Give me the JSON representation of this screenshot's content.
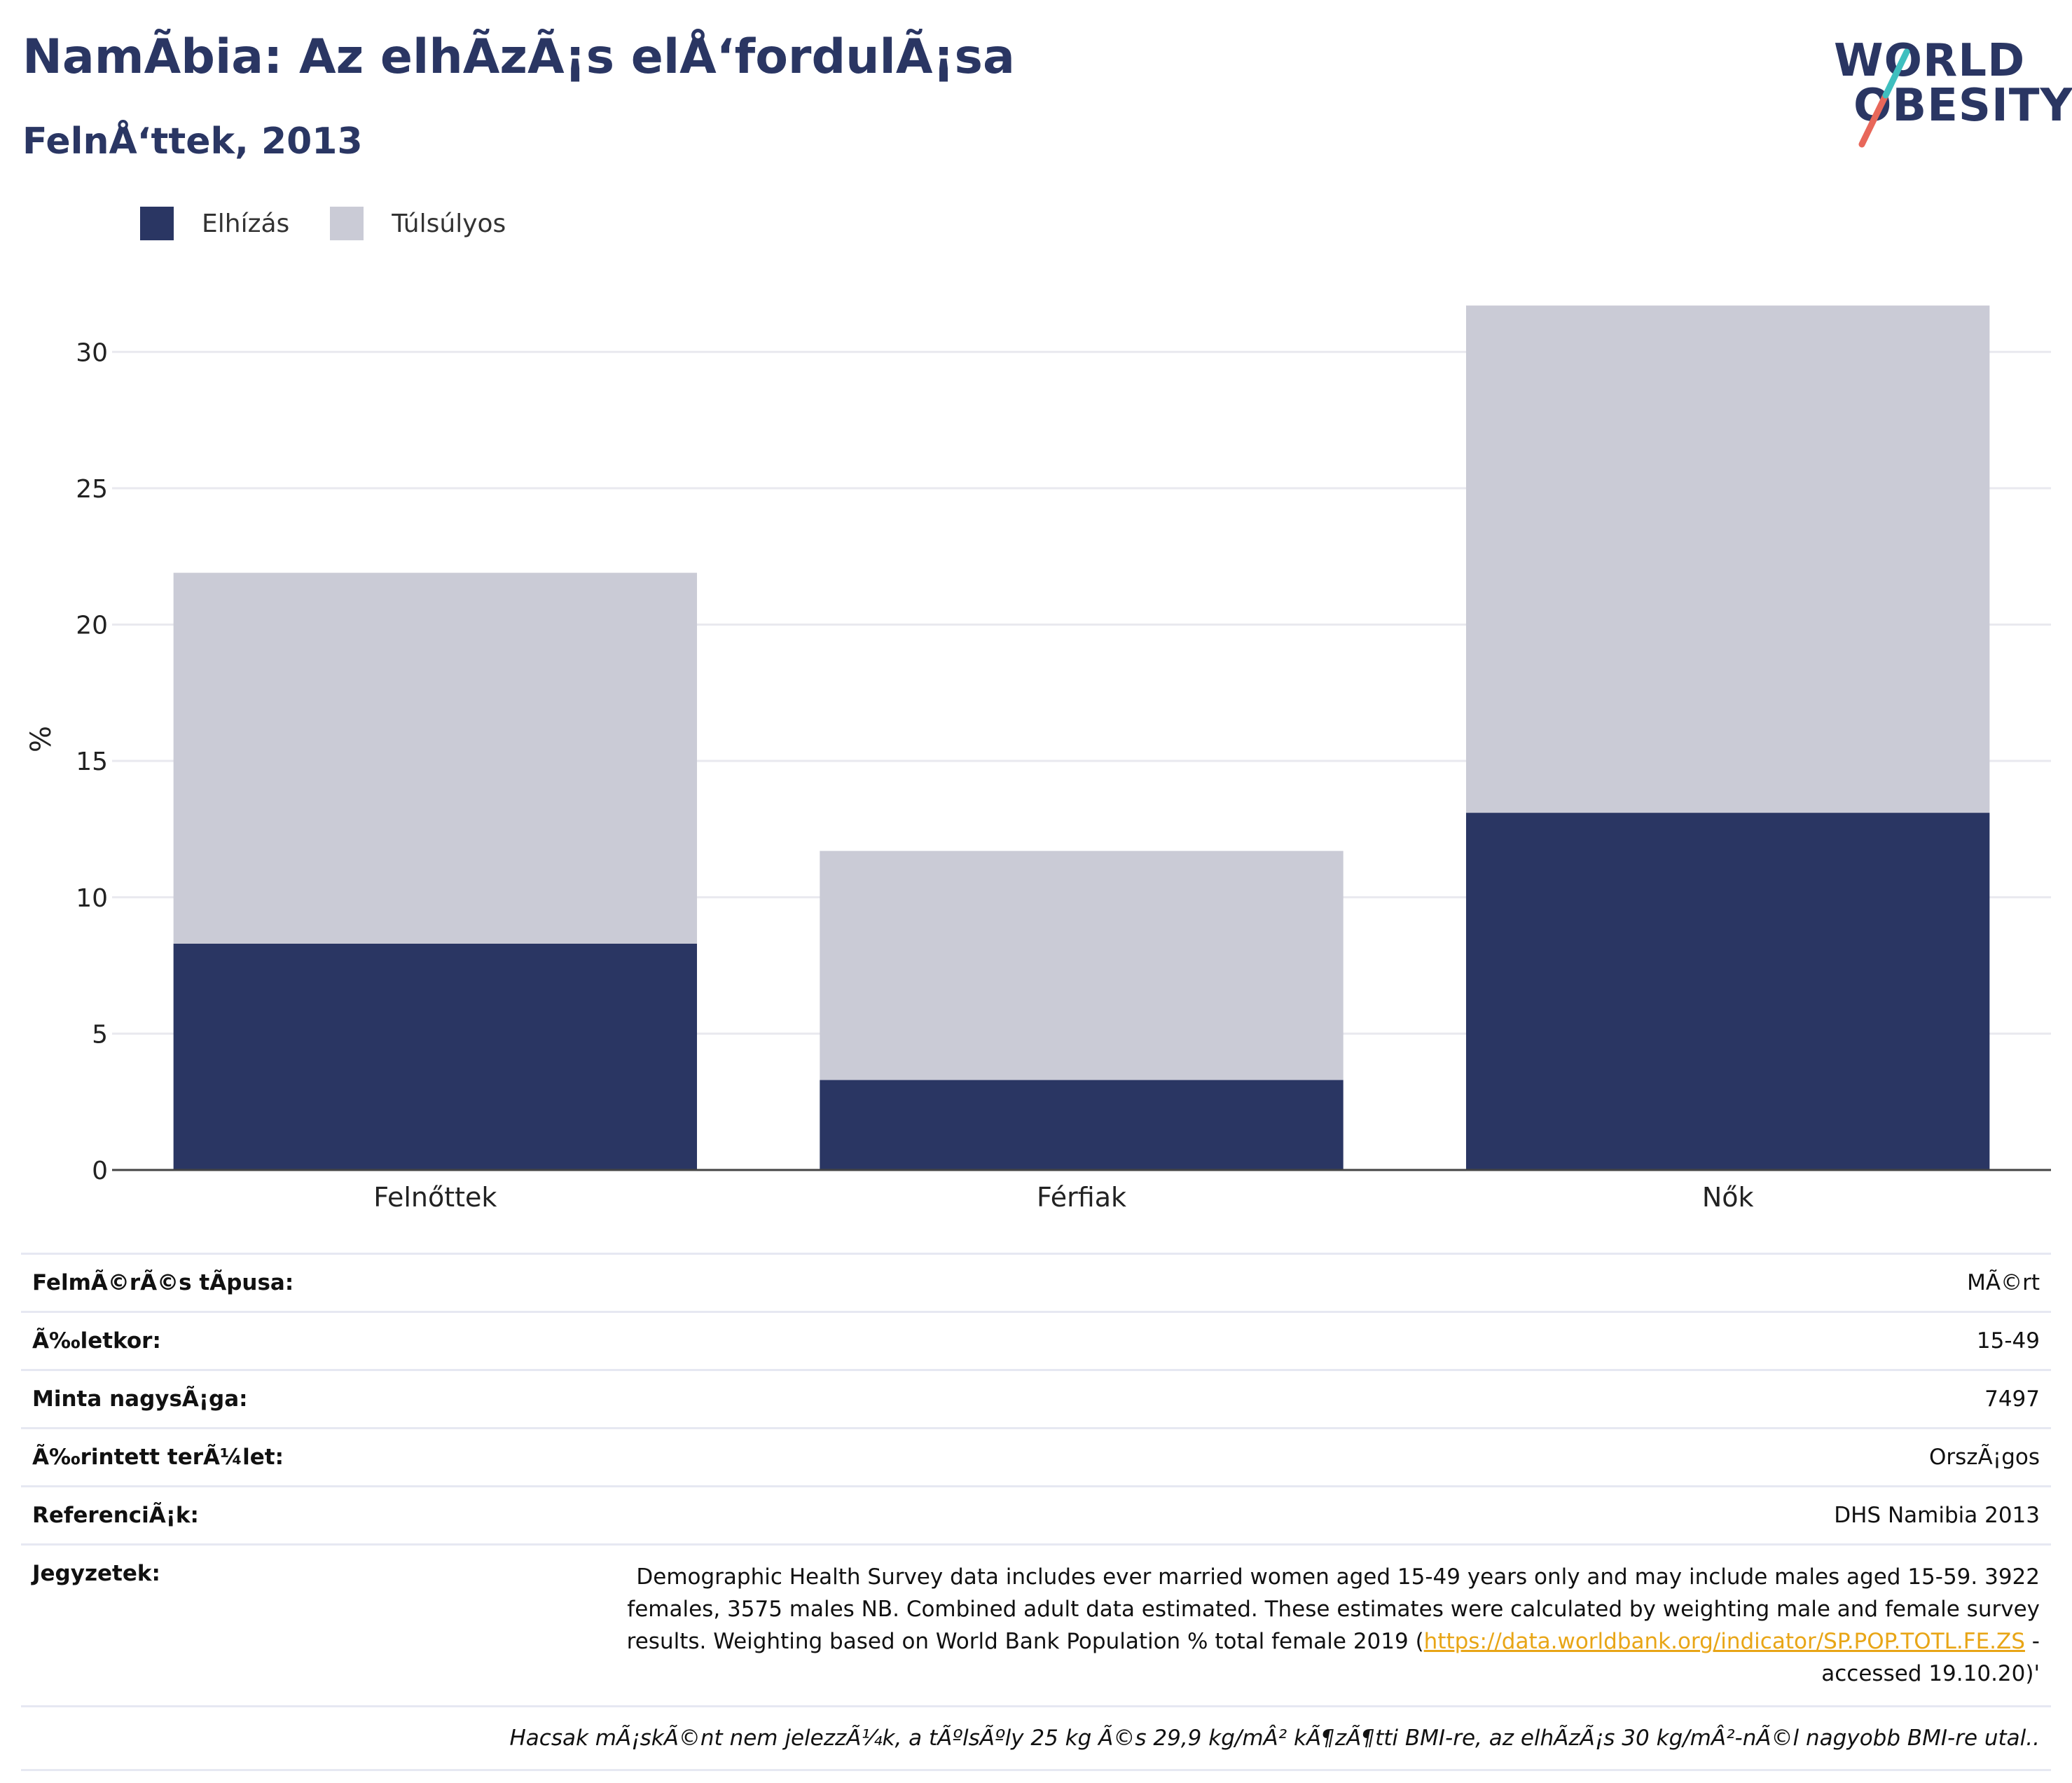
{
  "header": {
    "title": "NamÃbia: Az elhÃzÃ¡s elÅ‘fordulÃ¡sa",
    "subtitle": "FelnÅ‘ttek, 2013"
  },
  "logo": {
    "line1": "WORLD",
    "line2": "OBESITY",
    "colors": [
      "#2a3663",
      "#e8675a",
      "#3fbfbf"
    ]
  },
  "legend": [
    {
      "label": "Elhízás",
      "color": "#2a3663"
    },
    {
      "label": "Túlsúlyos",
      "color": "#cacbd6"
    }
  ],
  "chart_data": {
    "type": "bar",
    "stacked": true,
    "categories": [
      "Felnőttek",
      "Férfiak",
      "Nők"
    ],
    "series": [
      {
        "name": "Elhízás",
        "values": [
          8.3,
          3.3,
          13.1
        ],
        "color": "#2a3663"
      },
      {
        "name": "Túlsúlyos",
        "values": [
          13.6,
          8.4,
          18.6
        ],
        "color": "#cacbd6"
      }
    ],
    "ylabel": "%",
    "ylim": [
      0,
      31.6
    ],
    "yticks": [
      0,
      5,
      10,
      15,
      20,
      25,
      30
    ],
    "grid": true,
    "legend_position": "top-left"
  },
  "info": {
    "survey_type": {
      "label": "FelmÃ©rÃ©s tÃpusa:",
      "value": "MÃ©rt"
    },
    "age": {
      "label": "Ã‰letkor:",
      "value": "15-49"
    },
    "sample": {
      "label": "Minta nagysÃ¡ga:",
      "value": "7497"
    },
    "area": {
      "label": "Ã‰rintett terÃ¼let:",
      "value": "OrszÃ¡gos"
    },
    "references": {
      "label": "ReferenciÃ¡k:",
      "value": "DHS Namibia 2013"
    },
    "notes": {
      "label": "Jegyzetek:",
      "text_before": "Demographic Health Survey data includes ever married women aged 15-49 years only and may include males aged 15-59. 3922 females, 3575 males NB. Combined adult data estimated. These estimates were calculated by weighting male and female survey results. Weighting based on World Bank Population % total female 2019 (",
      "link": "https://data.worldbank.org/indicator/SP.POP.TOTL.FE.ZS",
      "text_after": " - accessed 19.10.20)'"
    },
    "footnote": "Hacsak mÃ¡skÃ©nt nem jelezzÃ¼k, a tÃºlsÃºly 25 kg Ã©s 29,9 kg/mÂ² kÃ¶zÃ¶tti BMI-re, az elhÃzÃ¡s 30 kg/mÂ²-nÃ©l nagyobb BMI-re utal.."
  }
}
